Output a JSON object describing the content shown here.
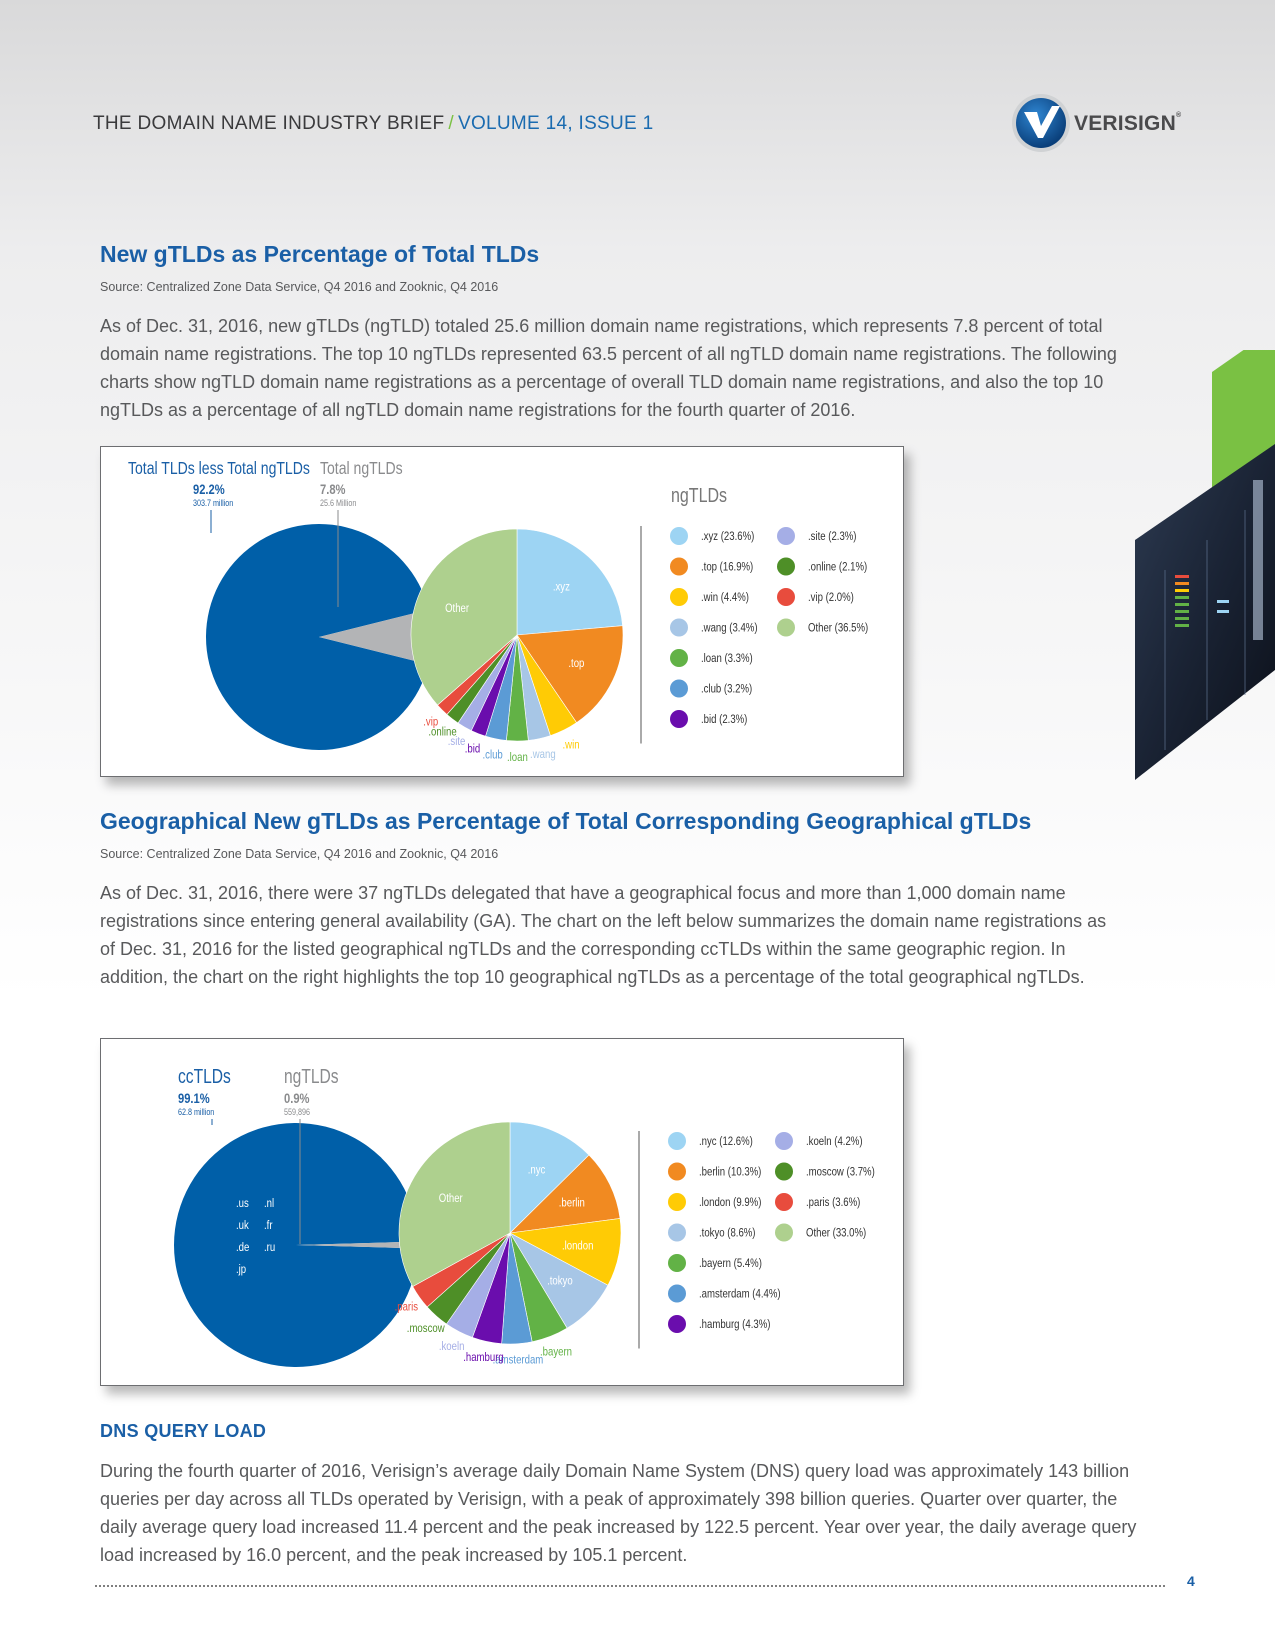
{
  "header": {
    "title": "THE DOMAIN NAME INDUSTRY BRIEF",
    "separator": "/",
    "volume": "VOLUME 14, ISSUE 1"
  },
  "logo": {
    "text": "VERISIGN",
    "mark": "®",
    "icon": "verisign-check-icon"
  },
  "section1": {
    "title": "New gTLDs as Percentage of Total TLDs",
    "source": "Source: Centralized Zone Data Service, Q4 2016 and Zooknic, Q4 2016",
    "paragraph": "As of Dec. 31, 2016, new gTLDs (ngTLD) totaled 25.6 million domain name registrations, which represents 7.8 percent of total domain name registrations. The top 10 ngTLDs represented 63.5 percent of all ngTLD domain name registrations. The following charts show ngTLD domain name registrations as a percentage of overall TLD domain name registrations, and also the top 10 ngTLDs as a percentage of all ngTLD domain name registrations for the fourth quarter of 2016."
  },
  "section2": {
    "title": "Geographical New gTLDs as Percentage of Total Corresponding Geographical gTLDs",
    "source": "Source: Centralized Zone Data Service, Q4 2016 and Zooknic, Q4 2016",
    "paragraph": "As of Dec. 31, 2016, there were 37 ngTLDs delegated that have a geographical focus and more than 1,000 domain name registrations since entering general availability (GA). The chart on the left below summarizes the domain name registrations as of Dec. 31, 2016 for the listed geographical ngTLDs and the corresponding ccTLDs within the same geographic region. In addition, the chart on the right highlights the top 10 geographical ngTLDs as a percentage of the total geographical ngTLDs."
  },
  "section3": {
    "title": "DNS QUERY LOAD",
    "paragraph": "During the fourth quarter of 2016, Verisign’s average daily Domain Name System (DNS) query load was approximately 143 billion queries per day across all TLDs operated by Verisign, with a peak of approximately 398 billion queries. Quarter over quarter, the daily average query load increased 11.4 percent and the peak increased by 122.5 percent. Year over year, the daily average query load increased by 16.0 percent, and the peak increased by 105.1 percent."
  },
  "page_number": "4",
  "colors": {
    "blue": "#005fa8",
    "title_blue": "#1a5fa6",
    "green_accent": "#7ac143",
    "gray_text": "#58595b"
  },
  "chart_data": [
    {
      "type": "pie",
      "title": "",
      "main": {
        "slices": [
          {
            "name": "Total TLDs less Total ngTLDs",
            "percent_label": "92.2%",
            "sub_label": "303.7 million",
            "value": 92.2,
            "color": "#005fa8"
          },
          {
            "name": "Total ngTLDs",
            "percent_label": "7.8%",
            "sub_label": "25.6 Million",
            "value": 7.8,
            "color": "#b3b4b6"
          }
        ]
      },
      "detail": {
        "legend_title": "ngTLDs",
        "slices": [
          {
            "label": ".xyz",
            "legend": ".xyz (23.6%)",
            "value": 23.6,
            "color": "#9dd4f3"
          },
          {
            "label": ".top",
            "legend": ".top (16.9%)",
            "value": 16.9,
            "color": "#f18a21"
          },
          {
            "label": ".win",
            "legend": ".win (4.4%)",
            "value": 4.4,
            "color": "#ffcb05"
          },
          {
            "label": ".wang",
            "legend": ".wang (3.4%)",
            "value": 3.4,
            "color": "#a7c6e6"
          },
          {
            "label": ".loan",
            "legend": ".loan (3.3%)",
            "value": 3.3,
            "color": "#62b246"
          },
          {
            "label": ".club",
            "legend": ".club (3.2%)",
            "value": 3.2,
            "color": "#5b9bd5"
          },
          {
            "label": ".bid",
            "legend": ".bid (2.3%)",
            "value": 2.3,
            "color": "#6a0dad"
          },
          {
            "label": ".site",
            "legend": ".site (2.3%)",
            "value": 2.3,
            "color": "#a5aee6"
          },
          {
            "label": ".online",
            "legend": ".online (2.1%)",
            "value": 2.1,
            "color": "#4e8f27"
          },
          {
            "label": ".vip",
            "legend": ".vip (2.0%)",
            "value": 2.0,
            "color": "#e84c3d"
          },
          {
            "label": "Other",
            "legend": "Other (36.5%)",
            "value": 36.5,
            "color": "#aed08e"
          }
        ]
      }
    },
    {
      "type": "pie",
      "title": "",
      "main": {
        "slices": [
          {
            "name": "ccTLDs",
            "percent_label": "99.1%",
            "sub_label": "62.8 million",
            "value": 99.1,
            "color": "#005fa8"
          },
          {
            "name": "ngTLDs",
            "percent_label": "0.9%",
            "sub_label": "559,896",
            "value": 0.9,
            "color": "#b3b4b6"
          }
        ],
        "inner_labels": [
          ".us",
          ".nl",
          ".uk",
          ".fr",
          ".de",
          ".ru",
          ".jp"
        ]
      },
      "detail": {
        "slices": [
          {
            "label": ".nyc",
            "legend": ".nyc (12.6%)",
            "value": 12.6,
            "color": "#9dd4f3"
          },
          {
            "label": ".berlin",
            "legend": ".berlin (10.3%)",
            "value": 10.3,
            "color": "#f18a21"
          },
          {
            "label": ".london",
            "legend": ".london (9.9%)",
            "value": 9.9,
            "color": "#ffcb05"
          },
          {
            "label": ".tokyo",
            "legend": ".tokyo (8.6%)",
            "value": 8.6,
            "color": "#a7c6e6"
          },
          {
            "label": ".bayern",
            "legend": ".bayern (5.4%)",
            "value": 5.4,
            "color": "#62b246"
          },
          {
            "label": ".amsterdam",
            "legend": ".amsterdam (4.4%)",
            "value": 4.4,
            "color": "#5b9bd5"
          },
          {
            "label": ".hamburg",
            "legend": ".hamburg (4.3%)",
            "value": 4.3,
            "color": "#6a0dad"
          },
          {
            "label": ".koeln",
            "legend": ".koeln (4.2%)",
            "value": 4.2,
            "color": "#a5aee6"
          },
          {
            "label": ".moscow",
            "legend": ".moscow (3.7%)",
            "value": 3.7,
            "color": "#4e8f27"
          },
          {
            "label": ".paris",
            "legend": ".paris (3.6%)",
            "value": 3.6,
            "color": "#e84c3d"
          },
          {
            "label": "Other",
            "legend": "Other (33.0%)",
            "value": 33.0,
            "color": "#aed08e"
          }
        ]
      }
    }
  ]
}
